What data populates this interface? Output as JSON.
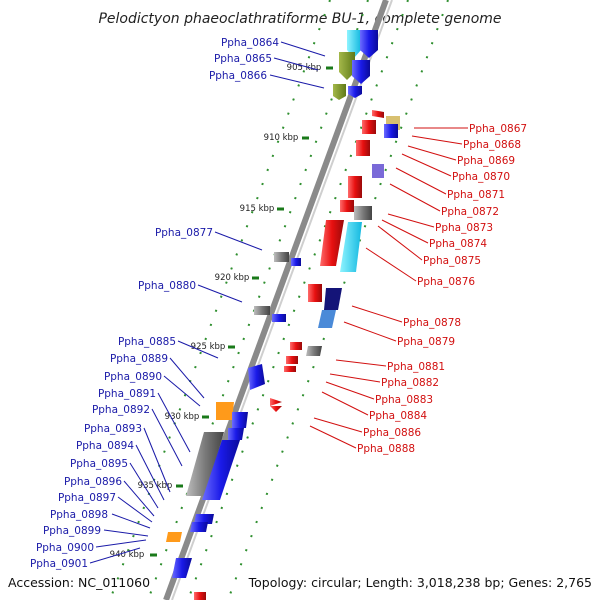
{
  "title": "Pelodictyon phaeoclathratiforme BU-1, complete genome",
  "accession": "Accession: NC_011060",
  "topology": "Topology: circular; Length: 3,018,238 bp; Genes: 2,765",
  "ticks": [
    "905 kbp",
    "910 kbp",
    "915 kbp",
    "920 kbp",
    "925 kbp",
    "930 kbp",
    "935 kbp",
    "940 kbp"
  ],
  "left_labels": [
    "Ppha_0864",
    "Ppha_0865",
    "Ppha_0866",
    "Ppha_0877",
    "Ppha_0880",
    "Ppha_0885",
    "Ppha_0889",
    "Ppha_0890",
    "Ppha_0891",
    "Ppha_0892",
    "Ppha_0893",
    "Ppha_0894",
    "Ppha_0895",
    "Ppha_0896",
    "Ppha_0897",
    "Ppha_0898",
    "Ppha_0899",
    "Ppha_0900",
    "Ppha_0901"
  ],
  "right_labels": [
    "Ppha_0867",
    "Ppha_0868",
    "Ppha_0869",
    "Ppha_0870",
    "Ppha_0871",
    "Ppha_0872",
    "Ppha_0873",
    "Ppha_0874",
    "Ppha_0875",
    "Ppha_0876",
    "Ppha_0878",
    "Ppha_0879",
    "Ppha_0881",
    "Ppha_0882",
    "Ppha_0883",
    "Ppha_0884",
    "Ppha_0886",
    "Ppha_0888"
  ],
  "colors": {
    "forward": "#1010e8",
    "reverse": "#e81010",
    "backbone": "#8a8a8a",
    "dots": "#2f8f2f",
    "left_text": "#1a1aa8",
    "right_text": "#d21010"
  }
}
